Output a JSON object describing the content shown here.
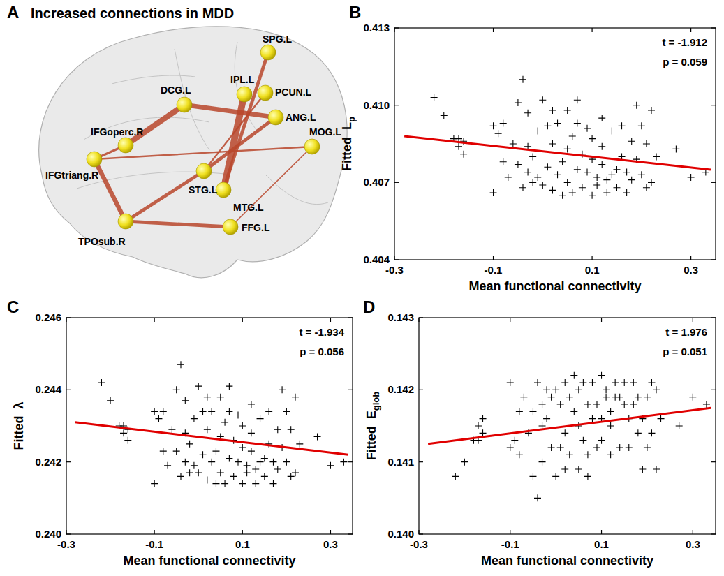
{
  "diagram": {
    "panel_label": "A",
    "title": "Increased connections in MDD",
    "nodes": [
      {
        "label": "SPG.L"
      },
      {
        "label": "IPL.L"
      },
      {
        "label": "PCUN.L"
      },
      {
        "label": "DCG.L"
      },
      {
        "label": "ANG.L"
      },
      {
        "label": "IFGoperc.R"
      },
      {
        "label": "MOG.L"
      },
      {
        "label": "IFGtriang.R"
      },
      {
        "label": "STG.L"
      },
      {
        "label": "MTG.L"
      },
      {
        "label": "TPOsub.R"
      },
      {
        "label": "FFG.L"
      }
    ],
    "edges": [
      {
        "source": 3,
        "target": 5,
        "weight": 5
      },
      {
        "source": 3,
        "target": 4,
        "weight": 4
      },
      {
        "source": 1,
        "target": 9,
        "weight": 6
      },
      {
        "source": 0,
        "target": 9,
        "weight": 3
      },
      {
        "source": 2,
        "target": 8,
        "weight": 1.5
      },
      {
        "source": 4,
        "target": 8,
        "weight": 3
      },
      {
        "source": 7,
        "target": 6,
        "weight": 1.5
      },
      {
        "source": 7,
        "target": 10,
        "weight": 4
      },
      {
        "source": 7,
        "target": 5,
        "weight": 2
      },
      {
        "source": 10,
        "target": 11,
        "weight": 3
      },
      {
        "source": 10,
        "target": 8,
        "weight": 3
      },
      {
        "source": 6,
        "target": 11,
        "weight": 1
      }
    ]
  },
  "chart_data": [
    {
      "type": "scatter",
      "panel_label": "B",
      "x_label": "Mean functional connectivity",
      "y_label": "Fitted",
      "y_symbol": "L",
      "y_symbol_sub": "p",
      "annotations": [
        "t = -1.912",
        "p = 0.059"
      ],
      "xlim": [
        -0.3,
        0.35
      ],
      "xticks": [
        -0.3,
        -0.1,
        0.1,
        0.3
      ],
      "ylim": [
        0.404,
        0.413
      ],
      "yticks": [
        {
          "value": 0.404,
          "label": "0.404"
        },
        {
          "value": 0.407,
          "label": "0.407"
        },
        {
          "value": 0.41,
          "label": "0.410"
        },
        {
          "value": 0.413,
          "label": "0.413"
        }
      ],
      "series": [
        {
          "type": "scatter",
          "marker": "plus",
          "color": "#000000",
          "x": [
            -0.22,
            -0.2,
            -0.18,
            -0.17,
            -0.17,
            -0.16,
            -0.16,
            -0.1,
            -0.1,
            -0.09,
            -0.08,
            -0.07,
            -0.06,
            -0.05,
            -0.05,
            -0.04,
            -0.04,
            -0.03,
            -0.03,
            -0.02,
            -0.02,
            -0.01,
            -0.01,
            0,
            0,
            0.01,
            0.01,
            0.02,
            0.02,
            0.03,
            0.03,
            0.04,
            0.04,
            0.05,
            0.05,
            0.05,
            0.06,
            0.06,
            0.07,
            0.07,
            0.08,
            0.08,
            0.09,
            0.09,
            0.1,
            0.1,
            0.1,
            0.11,
            0.11,
            0.12,
            0.12,
            0.13,
            0.13,
            0.14,
            0.14,
            0.15,
            0.15,
            0.16,
            0.16,
            0.17,
            0.17,
            0.18,
            0.18,
            0.19,
            0.19,
            0.2,
            0.2,
            0.21,
            0.21,
            0.22,
            0.22,
            0.23,
            0.27,
            0.3,
            0.33,
            -0.08,
            0.02,
            0.07,
            0.12,
            -0.03
          ],
          "values": [
            0.4103,
            0.4096,
            0.4087,
            0.4087,
            0.4084,
            0.4086,
            0.4081,
            0.4066,
            0.4092,
            0.4089,
            0.4093,
            0.4072,
            0.4085,
            0.4101,
            0.4077,
            0.411,
            0.4068,
            0.4097,
            0.4074,
            0.408,
            0.407,
            0.409,
            0.4072,
            0.4102,
            0.4069,
            0.4092,
            0.4076,
            0.4085,
            0.4067,
            0.4093,
            0.4073,
            0.4078,
            0.4065,
            0.4098,
            0.4083,
            0.407,
            0.4088,
            0.4066,
            0.4075,
            0.4093,
            0.4081,
            0.4068,
            0.4091,
            0.4074,
            0.4065,
            0.4079,
            0.4087,
            0.4072,
            0.4069,
            0.4084,
            0.4077,
            0.4071,
            0.4066,
            0.409,
            0.4073,
            0.4075,
            0.4068,
            0.408,
            0.4092,
            0.4074,
            0.4066,
            0.4086,
            0.4071,
            0.41,
            0.4079,
            0.4073,
            0.4092,
            0.4068,
            0.4085,
            0.4098,
            0.407,
            0.408,
            0.4083,
            0.4072,
            0.4074,
            0.4078,
            0.4098,
            0.4102,
            0.4095,
            0.4084
          ]
        },
        {
          "type": "line",
          "color": "#e00000",
          "x": [
            -0.28,
            0.34
          ],
          "values": [
            0.4088,
            0.4075
          ]
        }
      ]
    },
    {
      "type": "scatter",
      "panel_label": "C",
      "x_label": "Mean functional connectivity",
      "y_label": "Fitted",
      "y_symbol": "λ",
      "y_symbol_sub": null,
      "annotations": [
        "t = -1.934",
        "p = 0.056"
      ],
      "xlim": [
        -0.3,
        0.35
      ],
      "xticks": [
        -0.3,
        -0.1,
        0.1,
        0.3
      ],
      "ylim": [
        0.24,
        0.246
      ],
      "yticks": [
        {
          "value": 0.24,
          "label": "0.240"
        },
        0.242,
        0.244,
        {
          "value": 0.246,
          "label": "0.246"
        }
      ],
      "series": [
        {
          "type": "scatter",
          "marker": "plus",
          "color": "#000000",
          "x": [
            -0.22,
            -0.2,
            -0.18,
            -0.17,
            -0.17,
            -0.16,
            -0.16,
            -0.1,
            -0.1,
            -0.09,
            -0.08,
            -0.07,
            -0.06,
            -0.05,
            -0.05,
            -0.04,
            -0.04,
            -0.03,
            -0.03,
            -0.02,
            -0.02,
            -0.01,
            -0.01,
            0,
            0,
            0.01,
            0.01,
            0.02,
            0.02,
            0.03,
            0.03,
            0.04,
            0.04,
            0.05,
            0.05,
            0.05,
            0.06,
            0.06,
            0.07,
            0.07,
            0.08,
            0.08,
            0.09,
            0.09,
            0.1,
            0.1,
            0.1,
            0.11,
            0.11,
            0.12,
            0.12,
            0.13,
            0.13,
            0.14,
            0.14,
            0.15,
            0.15,
            0.16,
            0.16,
            0.17,
            0.17,
            0.18,
            0.18,
            0.19,
            0.19,
            0.2,
            0.2,
            0.21,
            0.21,
            0.22,
            0.22,
            0.23,
            0.27,
            0.3,
            0.33,
            -0.08,
            0.02,
            0.07,
            0.12,
            -0.03
          ],
          "values": [
            0.2442,
            0.2437,
            0.243,
            0.243,
            0.2428,
            0.2429,
            0.2426,
            0.2414,
            0.2434,
            0.2432,
            0.2434,
            0.2419,
            0.2429,
            0.244,
            0.2423,
            0.2447,
            0.2416,
            0.2437,
            0.242,
            0.2425,
            0.2417,
            0.2432,
            0.2419,
            0.2441,
            0.2417,
            0.2434,
            0.2422,
            0.2429,
            0.2415,
            0.2434,
            0.242,
            0.2423,
            0.2414,
            0.2438,
            0.2427,
            0.2417,
            0.2431,
            0.2414,
            0.2421,
            0.2434,
            0.2426,
            0.2416,
            0.2433,
            0.242,
            0.2414,
            0.2424,
            0.243,
            0.2419,
            0.2417,
            0.2428,
            0.2423,
            0.2418,
            0.2414,
            0.2432,
            0.242,
            0.2421,
            0.2416,
            0.2425,
            0.2434,
            0.242,
            0.2414,
            0.2429,
            0.2418,
            0.244,
            0.2424,
            0.242,
            0.2434,
            0.2416,
            0.2429,
            0.2438,
            0.2417,
            0.2425,
            0.2427,
            0.2419,
            0.242,
            0.2423,
            0.2438,
            0.2441,
            0.2436,
            0.2428
          ]
        },
        {
          "type": "line",
          "color": "#e00000",
          "x": [
            -0.28,
            0.34
          ],
          "values": [
            0.2431,
            0.2422
          ]
        }
      ]
    },
    {
      "type": "scatter",
      "panel_label": "D",
      "x_label": "Mean functional connectivity",
      "y_label": "Fitted",
      "y_symbol": "E",
      "y_symbol_sub": "glob",
      "annotations": [
        "t = 1.976",
        "p = 0.051"
      ],
      "xlim": [
        -0.3,
        0.35
      ],
      "xticks": [
        -0.3,
        -0.1,
        0.1,
        0.3
      ],
      "ylim": [
        0.14,
        0.143
      ],
      "yticks": [
        {
          "value": 0.14,
          "label": "0.140"
        },
        0.141,
        0.142,
        0.143
      ],
      "series": [
        {
          "type": "scatter",
          "marker": "plus",
          "color": "#000000",
          "x": [
            -0.22,
            -0.2,
            -0.18,
            -0.17,
            -0.17,
            -0.16,
            -0.16,
            -0.1,
            -0.1,
            -0.09,
            -0.08,
            -0.07,
            -0.06,
            -0.05,
            -0.05,
            -0.04,
            -0.04,
            -0.03,
            -0.03,
            -0.02,
            -0.02,
            -0.01,
            -0.01,
            0,
            0,
            0.01,
            0.01,
            0.02,
            0.02,
            0.03,
            0.03,
            0.04,
            0.04,
            0.05,
            0.05,
            0.05,
            0.06,
            0.06,
            0.07,
            0.07,
            0.08,
            0.08,
            0.09,
            0.09,
            0.1,
            0.1,
            0.1,
            0.11,
            0.11,
            0.12,
            0.12,
            0.13,
            0.13,
            0.14,
            0.14,
            0.15,
            0.15,
            0.16,
            0.16,
            0.17,
            0.17,
            0.18,
            0.18,
            0.19,
            0.19,
            0.2,
            0.2,
            0.21,
            0.21,
            0.22,
            0.22,
            0.23,
            0.27,
            0.3,
            0.33,
            -0.08,
            0.02,
            0.07,
            0.12,
            -0.03
          ],
          "values": [
            0.1408,
            0.141,
            0.1413,
            0.1413,
            0.1415,
            0.1414,
            0.1416,
            0.1421,
            0.1412,
            0.1413,
            0.1411,
            0.1419,
            0.1414,
            0.1408,
            0.1417,
            0.1405,
            0.1421,
            0.141,
            0.1418,
            0.1416,
            0.142,
            0.1412,
            0.1419,
            0.1408,
            0.142,
            0.1412,
            0.1418,
            0.1414,
            0.1421,
            0.1411,
            0.1419,
            0.1417,
            0.1422,
            0.1409,
            0.1415,
            0.142,
            0.1413,
            0.1421,
            0.1418,
            0.1411,
            0.1416,
            0.1421,
            0.1412,
            0.1418,
            0.1422,
            0.1416,
            0.1413,
            0.1419,
            0.142,
            0.1415,
            0.1417,
            0.1419,
            0.1421,
            0.1412,
            0.1419,
            0.1418,
            0.1421,
            0.1416,
            0.1412,
            0.1418,
            0.1421,
            0.1414,
            0.1419,
            0.1409,
            0.1416,
            0.1419,
            0.1412,
            0.1421,
            0.1414,
            0.1409,
            0.142,
            0.1416,
            0.1415,
            0.1419,
            0.1418,
            0.1417,
            0.1409,
            0.1408,
            0.1411,
            0.1415
          ]
        },
        {
          "type": "line",
          "color": "#e00000",
          "x": [
            -0.28,
            0.34
          ],
          "values": [
            0.14125,
            0.14175
          ]
        }
      ]
    }
  ]
}
